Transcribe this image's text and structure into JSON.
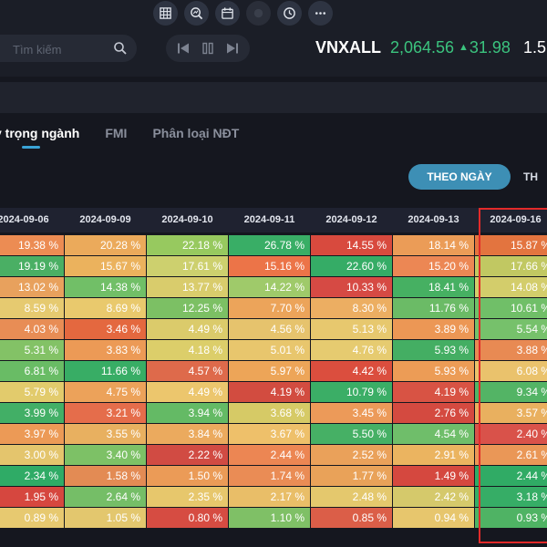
{
  "toolbar": {
    "icons": [
      "grid-icon",
      "search-chart-icon",
      "calendar-icon",
      "record-icon",
      "clock-icon",
      "more-icon"
    ]
  },
  "search": {
    "placeholder": "Tìm kiếm",
    "value": ""
  },
  "index": {
    "name": "VNXALL",
    "value": "2,064.56",
    "change": "31.98",
    "next": "1.5"
  },
  "tabs": [
    {
      "label": "ỷ trọng ngành",
      "active": true
    },
    {
      "label": "FMI",
      "active": false
    },
    {
      "label": "Phân loại NĐT",
      "active": false
    }
  ],
  "mode": {
    "active_label": "THEO NGÀY",
    "next_label": "TH"
  },
  "colors": {
    "accent": "#3aa3d6",
    "positive": "#3bc37e",
    "highlight": "#e22a2a"
  },
  "table": {
    "dates": [
      "2024-09-06",
      "2024-09-09",
      "2024-09-10",
      "2024-09-11",
      "2024-09-12",
      "2024-09-13",
      "2024-09-16"
    ],
    "rows": [
      [
        "19.38 %",
        "20.28 %",
        "22.18 %",
        "26.78 %",
        "14.55 %",
        "18.14 %",
        "15.87 %"
      ],
      [
        "19.19 %",
        "15.67 %",
        "17.61 %",
        "15.16 %",
        "22.60 %",
        "15.20 %",
        "17.66 %"
      ],
      [
        "13.02 %",
        "14.38 %",
        "13.77 %",
        "14.22 %",
        "10.33 %",
        "18.41 %",
        "14.08 %"
      ],
      [
        "8.59 %",
        "8.69 %",
        "12.25 %",
        "7.70 %",
        "8.30 %",
        "11.76 %",
        "10.61 %"
      ],
      [
        "4.03 %",
        "3.46 %",
        "4.49 %",
        "4.56 %",
        "5.13 %",
        "3.89 %",
        "5.54 %"
      ],
      [
        "5.31 %",
        "3.83 %",
        "4.18 %",
        "5.01 %",
        "4.76 %",
        "5.93 %",
        "3.88 %"
      ],
      [
        "6.81 %",
        "11.66 %",
        "4.57 %",
        "5.97 %",
        "4.42 %",
        "5.93 %",
        "6.08 %"
      ],
      [
        "5.79 %",
        "4.75 %",
        "4.49 %",
        "4.19 %",
        "10.79 %",
        "4.19 %",
        "9.34 %"
      ],
      [
        "3.99 %",
        "3.21 %",
        "3.94 %",
        "3.68 %",
        "3.45 %",
        "2.76 %",
        "3.57 %"
      ],
      [
        "3.97 %",
        "3.55 %",
        "3.84 %",
        "3.67 %",
        "5.50 %",
        "4.54 %",
        "2.40 %"
      ],
      [
        "3.00 %",
        "3.40 %",
        "2.22 %",
        "2.44 %",
        "2.52 %",
        "2.91 %",
        "2.61 %"
      ],
      [
        "2.34 %",
        "1.58 %",
        "1.50 %",
        "1.74 %",
        "1.77 %",
        "1.49 %",
        "2.44 %"
      ],
      [
        "1.95 %",
        "2.64 %",
        "2.35 %",
        "2.17 %",
        "2.48 %",
        "2.42 %",
        "3.18 %"
      ],
      [
        "0.89 %",
        "1.05 %",
        "0.80 %",
        "1.10 %",
        "0.85 %",
        "0.94 %",
        "0.93 %"
      ]
    ],
    "colors": [
      [
        "#ec8c53",
        "#ebaa5b",
        "#97c95f",
        "#39ae66",
        "#d84a3e",
        "#eb9c57",
        "#e3743f"
      ],
      [
        "#4aaf64",
        "#ebb25d",
        "#cdd06e",
        "#ec7448",
        "#35ac66",
        "#ec8754",
        "#c1c862"
      ],
      [
        "#e8a15d",
        "#71bf67",
        "#d9cc6c",
        "#9fca6a",
        "#d64a44",
        "#46b062",
        "#d3cd6b"
      ],
      [
        "#e6ca70",
        "#e9c96d",
        "#7cc064",
        "#eca45a",
        "#ecae62",
        "#6bbb66",
        "#70bf68"
      ],
      [
        "#e88d55",
        "#e4683f",
        "#dbcb6b",
        "#e6c36d",
        "#e7c86e",
        "#ec9755",
        "#76c16b"
      ],
      [
        "#83c266",
        "#ec9a56",
        "#dcce6a",
        "#e8c66d",
        "#e6cb70",
        "#44ae63",
        "#e88a53"
      ],
      [
        "#69bc65",
        "#38ad65",
        "#de6a4b",
        "#eda558",
        "#db4e3e",
        "#ec9c56",
        "#eac26c"
      ],
      [
        "#e2cb6c",
        "#eca25a",
        "#ecc66d",
        "#d24c40",
        "#3bae66",
        "#d85344",
        "#53b465"
      ],
      [
        "#42af66",
        "#e56d4b",
        "#64ba65",
        "#d6ca66",
        "#ec9a59",
        "#d44a40",
        "#e9b05f"
      ],
      [
        "#ec9a56",
        "#e8b060",
        "#ebaa5e",
        "#eec06a",
        "#46b065",
        "#6fbe6a",
        "#d9524a"
      ],
      [
        "#e4c56d",
        "#7dc166",
        "#d14b43",
        "#ec8653",
        "#eaa15a",
        "#ebb460",
        "#ea9757"
      ],
      [
        "#2fab66",
        "#e38b54",
        "#eb9b57",
        "#ea8c55",
        "#e9a259",
        "#d5483f",
        "#30ab65"
      ],
      [
        "#d6473f",
        "#75be67",
        "#e7c76c",
        "#e9be68",
        "#e4c86d",
        "#d5c96b",
        "#36ad66"
      ],
      [
        "#e7c970",
        "#e3c76e",
        "#d64c42",
        "#7fc066",
        "#db5e48",
        "#e7c66d",
        "#4fb364"
      ]
    ]
  }
}
